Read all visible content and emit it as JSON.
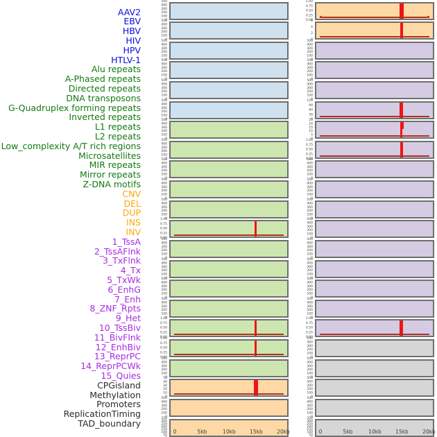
{
  "figure": {
    "background": "#ffffff",
    "x_axis_tick_labels": [
      "0",
      "5kb",
      "10kb",
      "15kb",
      "20kb"
    ]
  },
  "palette": {
    "panel_border": "#6e6e6e",
    "panel_fill": {
      "virus": "#cfe1ee",
      "repeat": "#cde6b0",
      "sv": "#fed9a6",
      "state": "#d5cbe3",
      "other": "#d6d6d6"
    },
    "label_color": {
      "virus": "#0a0ae0",
      "repeat": "#127a12",
      "sv": "#ffa60a",
      "state": "#a62ce2",
      "other": "#2a2a2a"
    },
    "signal_line": "#f01414",
    "signal_baseline": "#b0301e",
    "tick_text": "#3c3c3c"
  },
  "chart_data": {
    "type": "area",
    "layout": "22 rows x 2 columns of mini signal panels",
    "x_ticks": [
      "0",
      "5kb",
      "10kb",
      "15kb",
      "20kb"
    ],
    "xlim_kb": [
      0,
      20
    ],
    "signal_peak_position_kb": 15,
    "grid": false,
    "legend": "none",
    "ytick_sets": {
      "std500": [
        "500",
        "400",
        "300",
        "200",
        "100",
        "0"
      ],
      "frac1": [
        "1.00",
        "0.75",
        "0.50",
        "0.25",
        "0.00"
      ],
      "int6": [
        "6",
        "4",
        "2",
        "0"
      ],
      "cnv50": [
        "50",
        "40",
        "30",
        "20",
        "10",
        "0"
      ],
      "tx120": [
        "120",
        "90",
        "60",
        "30",
        "0"
      ],
      "txwk25": [
        "25",
        "20",
        "15",
        "10",
        "5",
        "0"
      ],
      "dense8": [
        "350",
        "300",
        "250",
        "200",
        "150",
        "100",
        "50",
        "0"
      ]
    },
    "tracks": [
      {
        "label": "AAV2",
        "group": "virus",
        "column": "left",
        "row": 0,
        "yticks": "std500",
        "signal": null
      },
      {
        "label": "EBV",
        "group": "virus",
        "column": "left",
        "row": 1,
        "yticks": "std500",
        "signal": null
      },
      {
        "label": "HBV",
        "group": "virus",
        "column": "left",
        "row": 2,
        "yticks": "std500",
        "signal": null
      },
      {
        "label": "HIV",
        "group": "virus",
        "column": "left",
        "row": 3,
        "yticks": "std500",
        "signal": null
      },
      {
        "label": "HPV",
        "group": "virus",
        "column": "left",
        "row": 4,
        "yticks": "std500",
        "signal": null
      },
      {
        "label": "HTLV-1",
        "group": "virus",
        "column": "left",
        "row": 5,
        "yticks": "std500",
        "signal": null
      },
      {
        "label": "Alu repeats",
        "group": "repeat",
        "column": "left",
        "row": 6,
        "yticks": "std500",
        "signal": null
      },
      {
        "label": "A-Phased repeats",
        "group": "repeat",
        "column": "left",
        "row": 7,
        "yticks": "std500",
        "signal": null
      },
      {
        "label": "Directed repeats",
        "group": "repeat",
        "column": "left",
        "row": 8,
        "yticks": "std500",
        "signal": null
      },
      {
        "label": "DNA transposons",
        "group": "repeat",
        "column": "left",
        "row": 9,
        "yticks": "std500",
        "signal": null
      },
      {
        "label": "G-Quadruplex forming repeats",
        "group": "repeat",
        "column": "left",
        "row": 10,
        "yticks": "std500",
        "signal": null
      },
      {
        "label": "Inverted repeats",
        "group": "repeat",
        "column": "left",
        "row": 11,
        "yticks": "frac1",
        "signal": {
          "width": 3,
          "step": false,
          "bumps": false,
          "peak_value": 1.0
        }
      },
      {
        "label": "L1 repeats",
        "group": "repeat",
        "column": "left",
        "row": 12,
        "yticks": "std500",
        "signal": null
      },
      {
        "label": "L2 repeats",
        "group": "repeat",
        "column": "left",
        "row": 13,
        "yticks": "std500",
        "signal": null
      },
      {
        "label": "Low_complexity A/T rich regions",
        "group": "repeat",
        "column": "left",
        "row": 14,
        "yticks": "std500",
        "signal": null
      },
      {
        "label": "Microsatellites",
        "group": "repeat",
        "column": "left",
        "row": 15,
        "yticks": "std500",
        "signal": null
      },
      {
        "label": "MIR repeats",
        "group": "repeat",
        "column": "left",
        "row": 16,
        "yticks": "frac1",
        "signal": {
          "width": 3,
          "step": false,
          "bumps": false,
          "peak_value": 1.0
        }
      },
      {
        "label": "Mirror repeats",
        "group": "repeat",
        "column": "left",
        "row": 17,
        "yticks": "frac1",
        "signal": {
          "width": 3,
          "step": false,
          "bumps": false,
          "peak_value": 1.0
        }
      },
      {
        "label": "Z-DNA motifs",
        "group": "repeat",
        "column": "left",
        "row": 18,
        "yticks": "std500",
        "signal": null
      },
      {
        "label": "CNV",
        "group": "sv",
        "column": "left",
        "row": 19,
        "yticks": "cnv50",
        "signal": {
          "width": 6,
          "step": false,
          "bumps": false,
          "peak_value": 50
        }
      },
      {
        "label": "DEL",
        "group": "sv",
        "column": "left",
        "row": 20,
        "yticks": "std500",
        "signal": null
      },
      {
        "label": "DUP",
        "group": "sv",
        "column": "left",
        "row": 21,
        "yticks": "dense8",
        "signal": null
      },
      {
        "label": "INS",
        "group": "sv",
        "column": "right",
        "row": 0,
        "yticks": "frac1",
        "signal": {
          "width": 6,
          "step": false,
          "bumps": true,
          "peak_value": 1.0
        }
      },
      {
        "label": "INV",
        "group": "sv",
        "column": "right",
        "row": 1,
        "yticks": "int6",
        "signal": {
          "width": 4,
          "step": false,
          "bumps": false,
          "peak_value": 6
        }
      },
      {
        "label": "1_TssA",
        "group": "state",
        "column": "right",
        "row": 2,
        "yticks": "std500",
        "signal": null
      },
      {
        "label": "2_TssAFlnk",
        "group": "state",
        "column": "right",
        "row": 3,
        "yticks": "std500",
        "signal": null
      },
      {
        "label": "3_TxFlnk",
        "group": "state",
        "column": "right",
        "row": 4,
        "yticks": "std500",
        "signal": null
      },
      {
        "label": "4_Tx",
        "group": "state",
        "column": "right",
        "row": 5,
        "yticks": "tx120",
        "signal": {
          "width": 5,
          "step": false,
          "bumps": false,
          "peak_value": 120
        }
      },
      {
        "label": "5_TxWk",
        "group": "state",
        "column": "right",
        "row": 6,
        "yticks": "txwk25",
        "signal": {
          "width": 3,
          "step": true,
          "bumps": false,
          "peak_value": 25
        }
      },
      {
        "label": "6_EnhG",
        "group": "state",
        "column": "right",
        "row": 7,
        "yticks": "frac1",
        "signal": {
          "width": 4,
          "step": false,
          "bumps": false,
          "peak_value": 1.0
        }
      },
      {
        "label": "7_Enh",
        "group": "state",
        "column": "right",
        "row": 8,
        "yticks": "std500",
        "signal": null
      },
      {
        "label": "8_ZNF_Rpts",
        "group": "state",
        "column": "right",
        "row": 9,
        "yticks": "std500",
        "signal": null
      },
      {
        "label": "9_Het",
        "group": "state",
        "column": "right",
        "row": 10,
        "yticks": "std500",
        "signal": null
      },
      {
        "label": "10_TssBiv",
        "group": "state",
        "column": "right",
        "row": 11,
        "yticks": "std500",
        "signal": null
      },
      {
        "label": "11_BivFlnk",
        "group": "state",
        "column": "right",
        "row": 12,
        "yticks": "std500",
        "signal": null
      },
      {
        "label": "12_EnhBiv",
        "group": "state",
        "column": "right",
        "row": 13,
        "yticks": "std500",
        "signal": null
      },
      {
        "label": "13_ReprPC",
        "group": "state",
        "column": "right",
        "row": 14,
        "yticks": "std500",
        "signal": null
      },
      {
        "label": "14_ReprPCWk",
        "group": "state",
        "column": "right",
        "row": 15,
        "yticks": "std500",
        "signal": null
      },
      {
        "label": "15_Quies",
        "group": "state",
        "column": "right",
        "row": 16,
        "yticks": "frac1",
        "signal": {
          "width": 5,
          "step": false,
          "bumps": false,
          "peak_value": 1.0
        }
      },
      {
        "label": "CPGisland",
        "group": "other",
        "column": "right",
        "row": 17,
        "yticks": "std500",
        "signal": null
      },
      {
        "label": "Methylation",
        "group": "other",
        "column": "right",
        "row": 18,
        "yticks": "std500",
        "signal": null
      },
      {
        "label": "Promoters",
        "group": "other",
        "column": "right",
        "row": 19,
        "yticks": "std500",
        "signal": null
      },
      {
        "label": "ReplicationTiming",
        "group": "other",
        "column": "right",
        "row": 20,
        "yticks": "std500",
        "signal": null
      },
      {
        "label": "TAD_boundary",
        "group": "other",
        "column": "right",
        "row": 21,
        "yticks": "dense8",
        "signal": null
      }
    ]
  }
}
